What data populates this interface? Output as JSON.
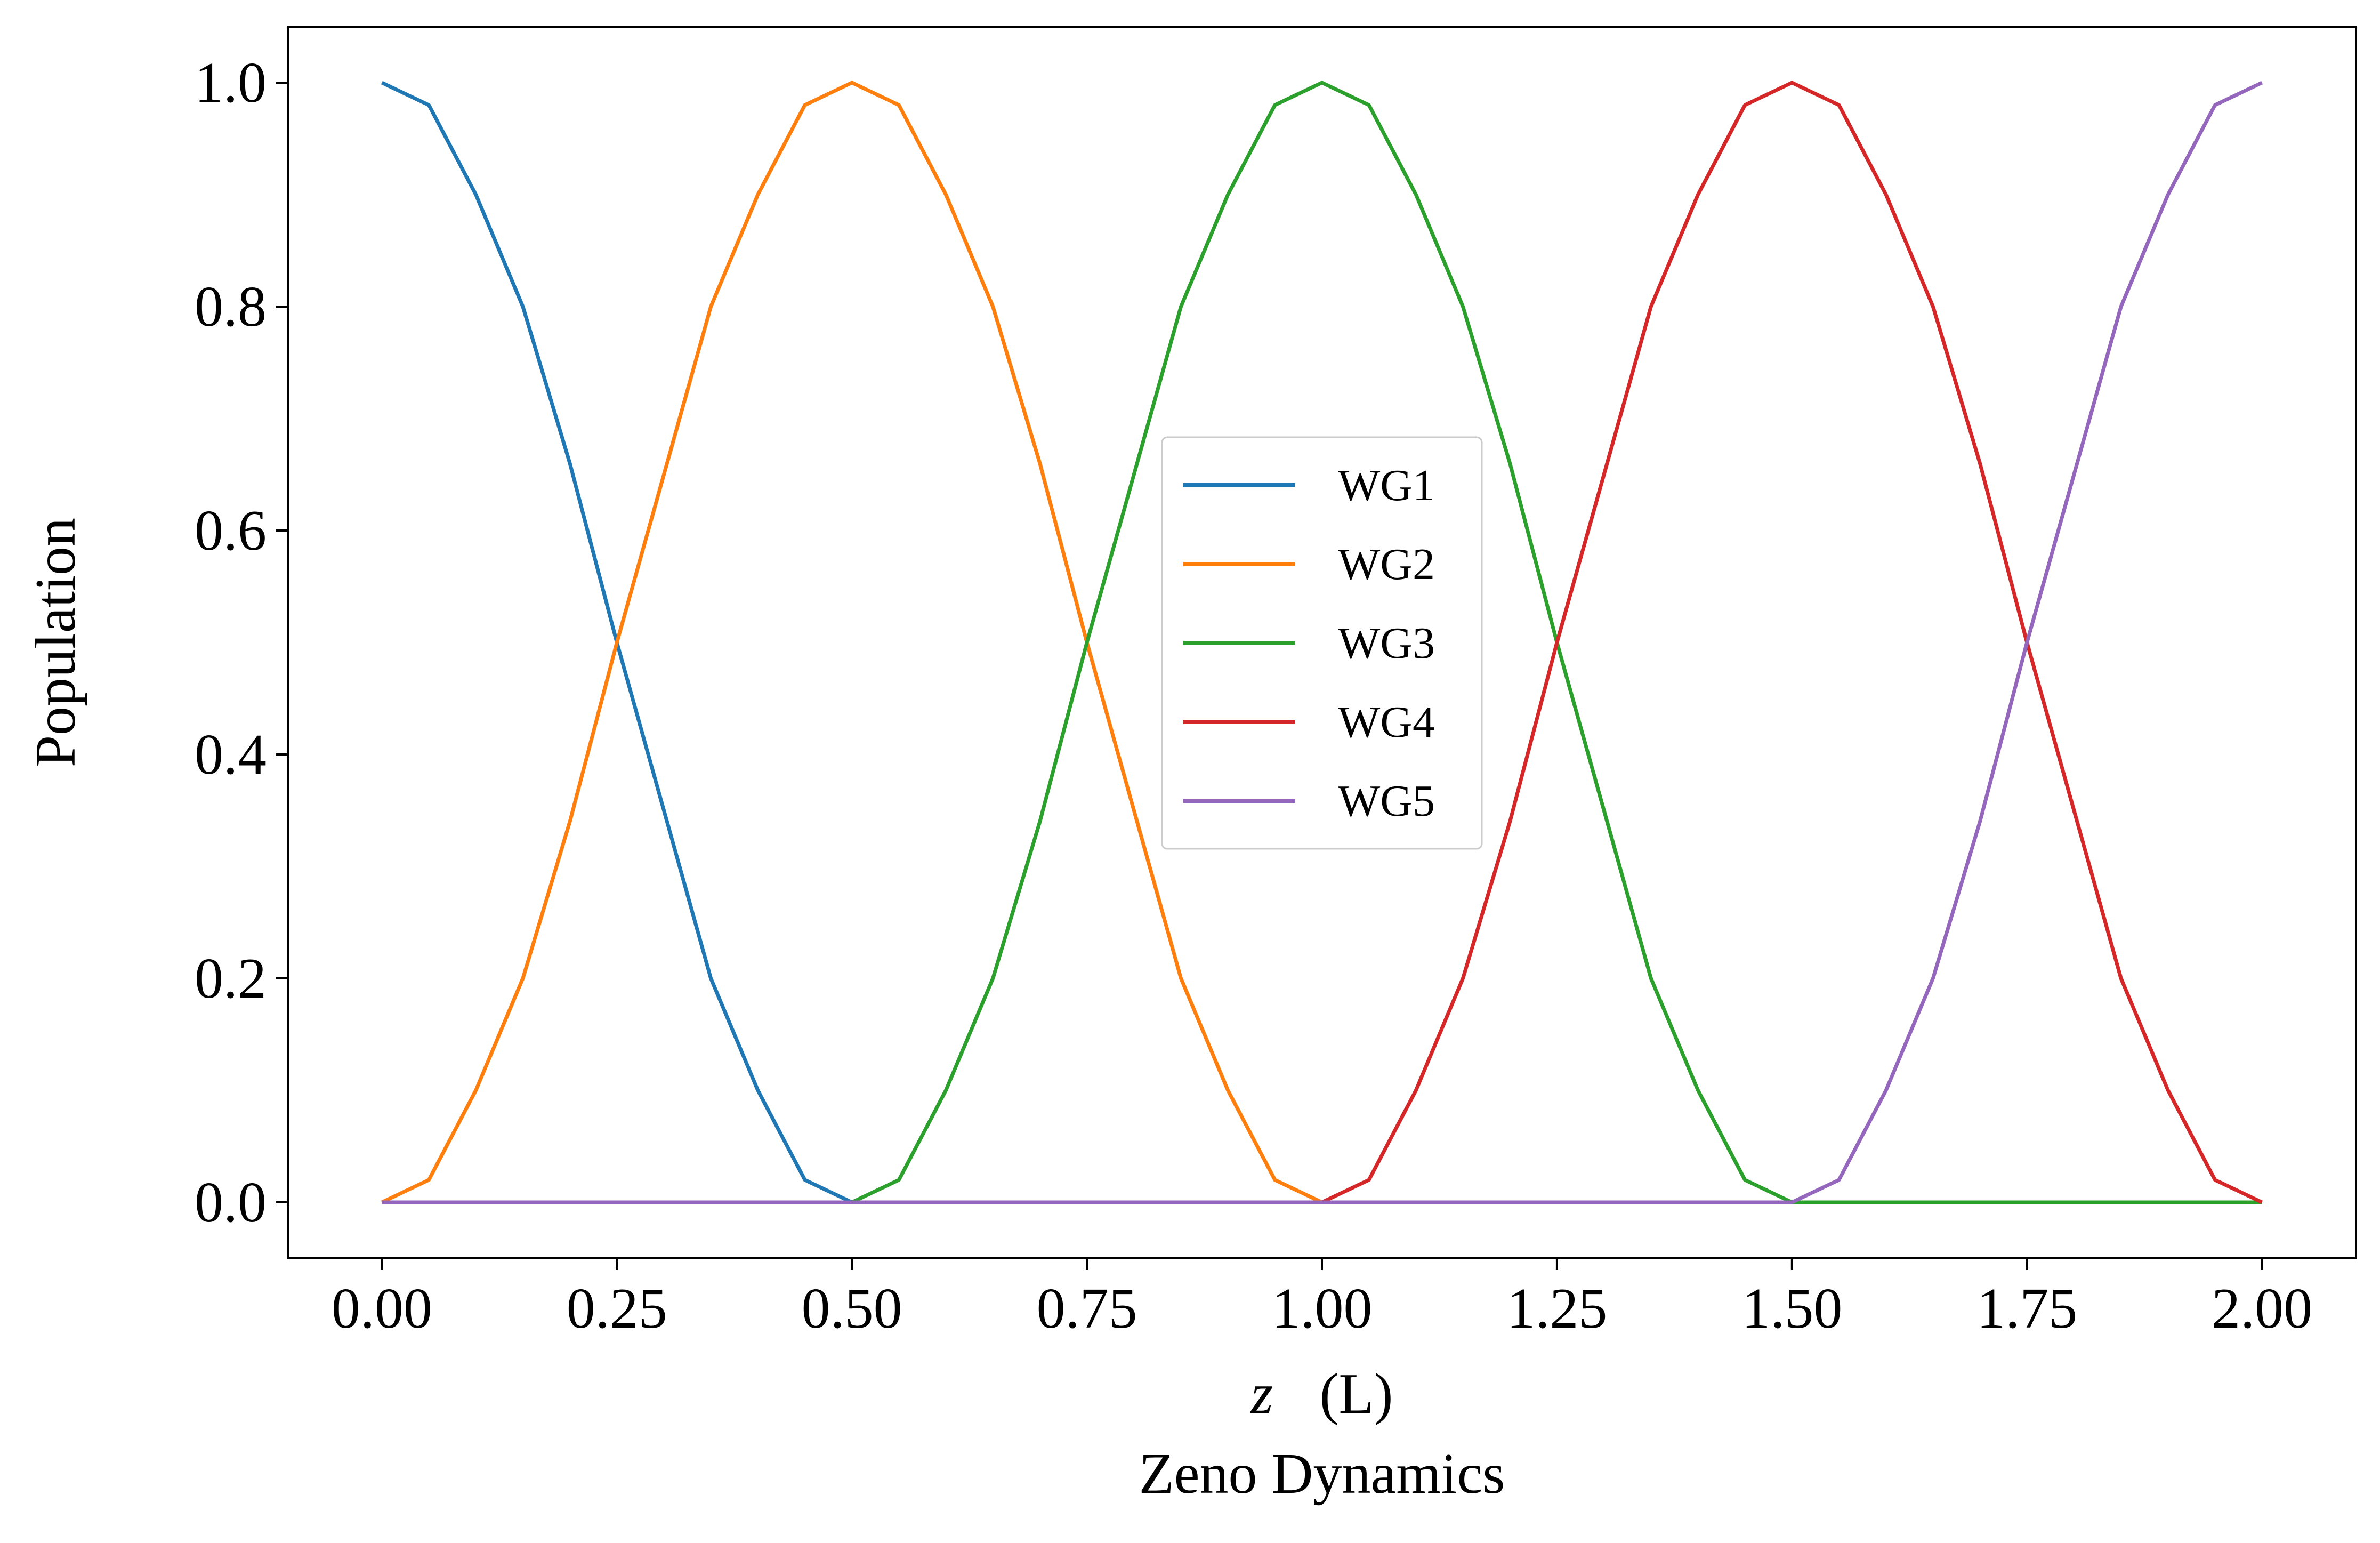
{
  "chart_data": {
    "type": "line",
    "title": "",
    "xlabel": "z (L)",
    "xlabel_parts": {
      "var": "z",
      "unit": "(L)"
    },
    "ylabel": "Population",
    "caption": "Zeno Dynamics",
    "xlim": [
      -0.1,
      2.1
    ],
    "ylim": [
      -0.05,
      1.05
    ],
    "xticks": [
      0.0,
      0.25,
      0.5,
      0.75,
      1.0,
      1.25,
      1.5,
      1.75,
      2.0
    ],
    "xtick_labels": [
      "0.00",
      "0.25",
      "0.50",
      "0.75",
      "1.00",
      "1.25",
      "1.50",
      "1.75",
      "2.00"
    ],
    "yticks": [
      0.0,
      0.2,
      0.4,
      0.6,
      0.8,
      1.0
    ],
    "ytick_labels": [
      "0.0",
      "0.2",
      "0.4",
      "0.6",
      "0.8",
      "1.0"
    ],
    "grid": false,
    "legend_position": "center",
    "series": [
      {
        "name": "WG1",
        "color": "#1f77b4",
        "x": [
          0.0,
          0.05,
          0.1,
          0.15,
          0.2,
          0.25,
          0.3,
          0.35,
          0.4,
          0.45,
          0.5,
          0.55,
          0.75,
          1.0,
          1.25,
          1.5,
          1.75,
          2.0
        ],
        "y": [
          1.0,
          0.98,
          0.9,
          0.8,
          0.66,
          0.5,
          0.35,
          0.2,
          0.1,
          0.02,
          0.0,
          0.0,
          0.0,
          0.0,
          0.0,
          0.0,
          0.0,
          0.0
        ]
      },
      {
        "name": "WG2",
        "color": "#ff7f0e",
        "x": [
          0.0,
          0.05,
          0.1,
          0.15,
          0.2,
          0.25,
          0.3,
          0.35,
          0.4,
          0.45,
          0.5,
          0.55,
          0.6,
          0.65,
          0.7,
          0.75,
          0.8,
          0.85,
          0.9,
          0.95,
          1.0,
          1.05,
          1.25,
          1.5,
          1.75,
          2.0
        ],
        "y": [
          0.0,
          0.02,
          0.1,
          0.2,
          0.34,
          0.5,
          0.65,
          0.8,
          0.9,
          0.98,
          1.0,
          0.98,
          0.9,
          0.8,
          0.66,
          0.5,
          0.35,
          0.2,
          0.1,
          0.02,
          0.0,
          0.0,
          0.0,
          0.0,
          0.0,
          0.0
        ]
      },
      {
        "name": "WG3",
        "color": "#2ca02c",
        "x": [
          0.0,
          0.25,
          0.5,
          0.55,
          0.6,
          0.65,
          0.7,
          0.75,
          0.8,
          0.85,
          0.9,
          0.95,
          1.0,
          1.05,
          1.1,
          1.15,
          1.2,
          1.25,
          1.3,
          1.35,
          1.4,
          1.45,
          1.5,
          1.55,
          1.75,
          2.0
        ],
        "y": [
          0.0,
          0.0,
          0.0,
          0.02,
          0.1,
          0.2,
          0.34,
          0.5,
          0.65,
          0.8,
          0.9,
          0.98,
          1.0,
          0.98,
          0.9,
          0.8,
          0.66,
          0.5,
          0.35,
          0.2,
          0.1,
          0.02,
          0.0,
          0.0,
          0.0,
          0.0
        ]
      },
      {
        "name": "WG4",
        "color": "#d62728",
        "x": [
          0.0,
          0.5,
          1.0,
          1.05,
          1.1,
          1.15,
          1.2,
          1.25,
          1.3,
          1.35,
          1.4,
          1.45,
          1.5,
          1.55,
          1.6,
          1.65,
          1.7,
          1.75,
          1.8,
          1.85,
          1.9,
          1.95,
          2.0
        ],
        "y": [
          0.0,
          0.0,
          0.0,
          0.02,
          0.1,
          0.2,
          0.34,
          0.5,
          0.65,
          0.8,
          0.9,
          0.98,
          1.0,
          0.98,
          0.9,
          0.8,
          0.66,
          0.5,
          0.35,
          0.2,
          0.1,
          0.02,
          0.0
        ]
      },
      {
        "name": "WG5",
        "color": "#9467bd",
        "x": [
          0.0,
          0.5,
          1.0,
          1.5,
          1.55,
          1.6,
          1.65,
          1.7,
          1.75,
          1.8,
          1.85,
          1.9,
          1.95,
          2.0
        ],
        "y": [
          0.0,
          0.0,
          0.0,
          0.0,
          0.02,
          0.1,
          0.2,
          0.34,
          0.5,
          0.65,
          0.8,
          0.9,
          0.98,
          1.0
        ]
      }
    ]
  }
}
